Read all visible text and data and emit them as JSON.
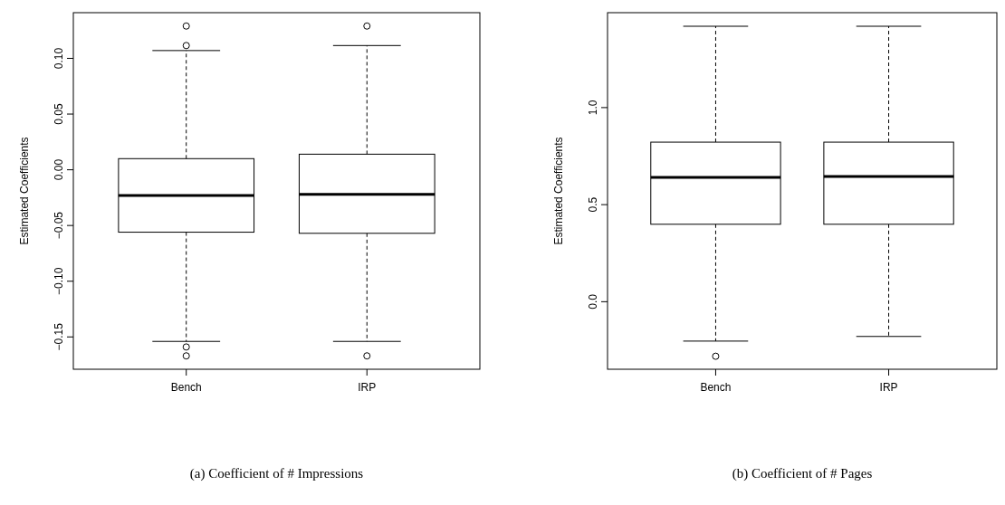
{
  "chart_data": [
    {
      "type": "box",
      "title": "(a)  Coefficient of # Impressions",
      "ylabel": "Estimated Coefficients",
      "categories": [
        "Bench",
        "IRP"
      ],
      "ylim": [
        -0.179,
        0.141
      ],
      "yticks": [
        {
          "value": -0.15,
          "label": "−0.15"
        },
        {
          "value": -0.1,
          "label": "−0.10"
        },
        {
          "value": -0.05,
          "label": "−0.05"
        },
        {
          "value": 0,
          "label": "0.00"
        },
        {
          "value": 0.05,
          "label": "0.05"
        },
        {
          "value": 0.1,
          "label": "0.10"
        }
      ],
      "boxes": [
        {
          "low": -0.154,
          "q1": -0.056,
          "median": -0.023,
          "q3": 0.01,
          "high": 0.107,
          "outliers": [
            0.129,
            0.1115,
            -0.159,
            -0.167
          ]
        },
        {
          "low": -0.154,
          "q1": -0.057,
          "median": -0.022,
          "q3": 0.014,
          "high": 0.1115,
          "outliers": [
            0.129,
            -0.167
          ]
        }
      ]
    },
    {
      "type": "box",
      "title": "(b)  Coefficient of # Pages",
      "ylabel": "Estimated Coefficients",
      "categories": [
        "Bench",
        "IRP"
      ],
      "ylim": [
        -0.348,
        1.489
      ],
      "yticks": [
        {
          "value": 0,
          "label": "0.0"
        },
        {
          "value": 0.5,
          "label": "0.5"
        },
        {
          "value": 1,
          "label": "1.0"
        }
      ],
      "boxes": [
        {
          "low": -0.203,
          "q1": 0.399,
          "median": 0.64,
          "q3": 0.822,
          "high": 1.419,
          "outliers": [
            -0.281
          ]
        },
        {
          "low": -0.179,
          "q1": 0.399,
          "median": 0.645,
          "q3": 0.822,
          "high": 1.419
        }
      ]
    }
  ]
}
